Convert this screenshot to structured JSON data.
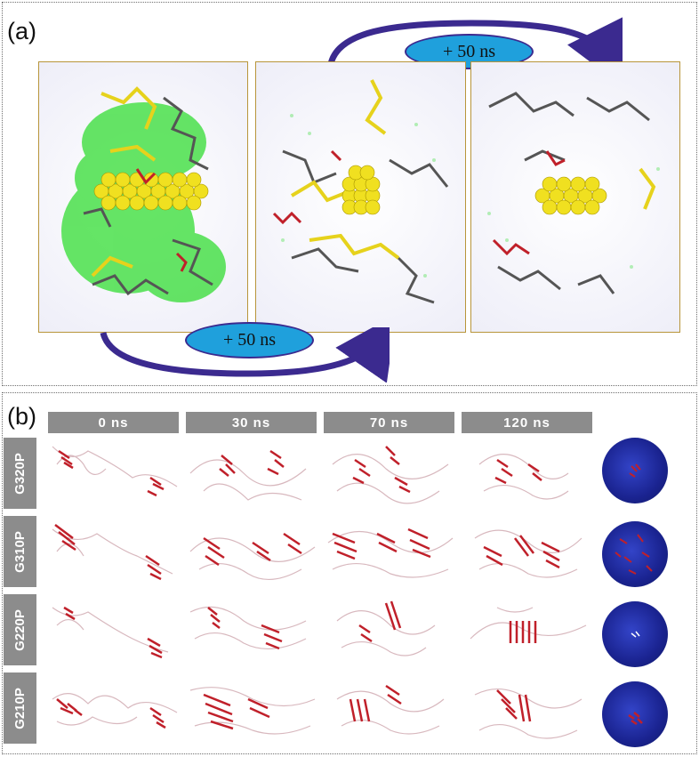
{
  "panel_a": {
    "label": "(a)",
    "arrow_top_label": "+ 50 ns",
    "arrow_bottom_label": "+ 50 ns"
  },
  "panel_b": {
    "label": "(b)",
    "time_headers": [
      "0  ns",
      "30  ns",
      "70  ns",
      "120  ns"
    ],
    "row_labels": [
      "G320P",
      "G310P",
      "G220P",
      "G210P"
    ]
  },
  "colors": {
    "frame": "#b8953a",
    "ellipse_fill": "#1fa0dc",
    "arrow": "#3b2a8f",
    "header_gray": "#8c8c8c",
    "sphere_blue": "#1a2390",
    "strand_red": "#c0202a",
    "nanoparticle_yellow": "#f0e020",
    "water_green": "#33dd33",
    "chain_gray": "#555555"
  }
}
